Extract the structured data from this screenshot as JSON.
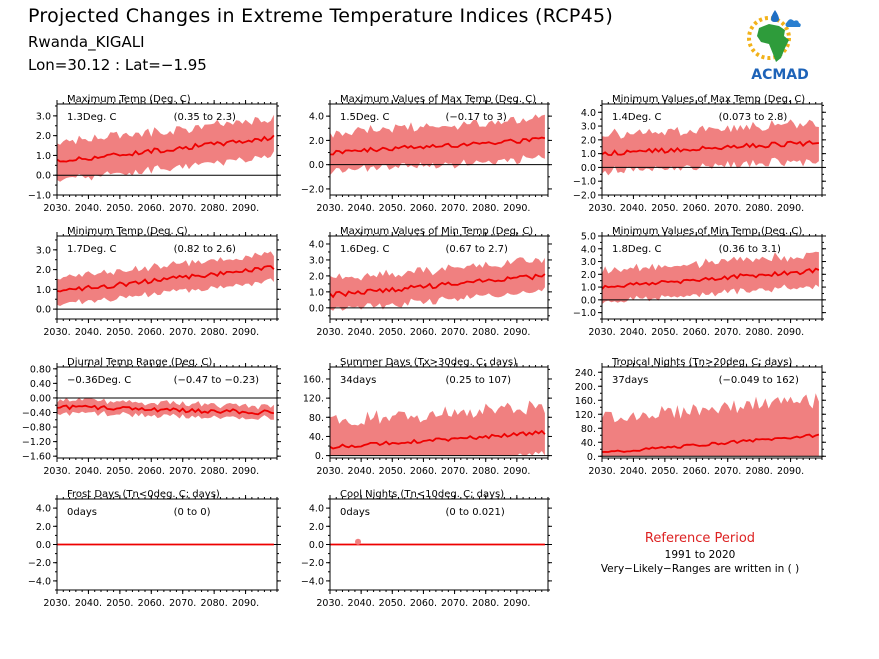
{
  "header": {
    "title": "Projected Changes in Extreme Temperature Indices (RCP45)",
    "location": "Rwanda_KIGALI",
    "coords": "Lon=30.12 : Lat=−1.95"
  },
  "logo": {
    "text": "ACMAD"
  },
  "reference": {
    "title": "Reference Period",
    "period": "1991 to 2020",
    "note": "Very−Likely−Ranges are written in ( )"
  },
  "colors": {
    "band": "#f08080",
    "line": "#ee0000",
    "zero": "#000000",
    "reference": "#dd2222"
  },
  "chart_data": [
    {
      "type": "line",
      "title": "Maximum Temp (Deg. C)",
      "annotation": "1.3Deg. C",
      "range": "(0.35 to 2.3)",
      "x_ticks": [
        "2030.",
        "2040.",
        "2050.",
        "2060.",
        "2070.",
        "2080.",
        "2090."
      ],
      "xlim": [
        2030,
        2100
      ],
      "ylim": [
        -1.0,
        3.6
      ],
      "y_ticks": [
        "−1.0",
        "0.0",
        "1.0",
        "2.0",
        "3.0"
      ],
      "y_tick_values": [
        -1,
        0,
        1,
        2,
        3
      ],
      "start": 0.7,
      "end": 1.9,
      "noise": 0.12,
      "band_half": 0.8,
      "band_noise": 0.25
    },
    {
      "type": "line",
      "title": "Maximum Values of Max Temp (Deg. C)",
      "annotation": "1.5Deg. C",
      "range": "(−0.17 to 3)",
      "x_ticks": [
        "2030.",
        "2040.",
        "2050.",
        "2060.",
        "2070.",
        "2080.",
        "2090."
      ],
      "xlim": [
        2030,
        2100
      ],
      "ylim": [
        -2.5,
        5.0
      ],
      "y_ticks": [
        "−2.0",
        "0.0",
        "2.0",
        "4.0"
      ],
      "y_tick_values": [
        -2,
        0,
        2,
        4
      ],
      "start": 1.0,
      "end": 2.1,
      "noise": 0.2,
      "band_half": 1.3,
      "band_noise": 0.5
    },
    {
      "type": "line",
      "title": "Minimum Values of Max Temp (Deg. C)",
      "annotation": "1.4Deg. C",
      "range": "(0.073 to 2.8)",
      "x_ticks": [
        "2030.",
        "2040.",
        "2050.",
        "2060.",
        "2070.",
        "2080.",
        "2090."
      ],
      "xlim": [
        2030,
        2100
      ],
      "ylim": [
        -2.0,
        4.6
      ],
      "y_ticks": [
        "−2.0",
        "−1.0",
        "0.0",
        "1.0",
        "2.0",
        "3.0",
        "4.0"
      ],
      "y_tick_values": [
        -2,
        -1,
        0,
        1,
        2,
        3,
        4
      ],
      "start": 1.0,
      "end": 1.8,
      "noise": 0.18,
      "band_half": 1.1,
      "band_noise": 0.4
    },
    {
      "type": "line",
      "title": "Minimum Temp (Deg. C)",
      "annotation": "1.7Deg. C",
      "range": "(0.82 to 2.6)",
      "x_ticks": [
        "2030.",
        "2040.",
        "2050.",
        "2060.",
        "2070.",
        "2080.",
        "2090."
      ],
      "xlim": [
        2030,
        2100
      ],
      "ylim": [
        -0.5,
        3.7
      ],
      "y_ticks": [
        "0.0",
        "1.0",
        "2.0",
        "3.0"
      ],
      "y_tick_values": [
        0,
        1,
        2,
        3
      ],
      "start": 0.9,
      "end": 2.1,
      "noise": 0.12,
      "band_half": 0.6,
      "band_noise": 0.15
    },
    {
      "type": "line",
      "title": "Maximum Values of Min Temp (Deg. C)",
      "annotation": "1.6Deg. C",
      "range": "(0.67 to 2.7)",
      "x_ticks": [
        "2030.",
        "2040.",
        "2050.",
        "2060.",
        "2070.",
        "2080.",
        "2090."
      ],
      "xlim": [
        2030,
        2100
      ],
      "ylim": [
        -0.7,
        4.5
      ],
      "y_ticks": [
        "0.0",
        "1.0",
        "2.0",
        "3.0",
        "4.0"
      ],
      "y_tick_values": [
        0,
        1,
        2,
        3,
        4
      ],
      "start": 0.8,
      "end": 2.0,
      "noise": 0.15,
      "band_half": 0.8,
      "band_noise": 0.3
    },
    {
      "type": "line",
      "title": "Minimum Values of Min Temp (Deg. C)",
      "annotation": "1.8Deg. C",
      "range": "(0.36 to 3.1)",
      "x_ticks": [
        "2030.",
        "2040.",
        "2050.",
        "2060.",
        "2070.",
        "2080.",
        "2090."
      ],
      "xlim": [
        2030,
        2100
      ],
      "ylim": [
        -1.5,
        5.0
      ],
      "y_ticks": [
        "−1.0",
        "0.0",
        "1.0",
        "2.0",
        "3.0",
        "4.0",
        "5.0"
      ],
      "y_tick_values": [
        -1,
        0,
        1,
        2,
        3,
        4,
        5
      ],
      "start": 1.0,
      "end": 2.3,
      "noise": 0.18,
      "band_half": 1.0,
      "band_noise": 0.4
    },
    {
      "type": "line",
      "title": "Diurnal Temp Range (Deg. C)",
      "annotation": "−0.36Deg. C",
      "range": "(−0.47 to −0.23)",
      "x_ticks": [
        "2030.",
        "2040.",
        "2050.",
        "2060.",
        "2070.",
        "2080.",
        "2090."
      ],
      "xlim": [
        2030,
        2100
      ],
      "ylim": [
        -1.65,
        0.85
      ],
      "y_ticks": [
        "−1.60",
        "−1.20",
        "−0.80",
        "−0.40",
        "0.00",
        "0.40",
        "0.80"
      ],
      "y_tick_values": [
        -1.6,
        -1.2,
        -0.8,
        -0.4,
        0,
        0.4,
        0.8
      ],
      "start": -0.25,
      "end": -0.4,
      "noise": 0.06,
      "band_half": 0.13,
      "band_noise": 0.08
    },
    {
      "type": "line",
      "title": "Summer Days (Tx>30deg. C; days)",
      "annotation": "34days",
      "range": "(0.25 to 107)",
      "x_ticks": [
        "2030.",
        "2040.",
        "2050.",
        "2060.",
        "2070.",
        "2080.",
        "2090."
      ],
      "xlim": [
        2030,
        2100
      ],
      "ylim": [
        -5,
        185
      ],
      "y_ticks": [
        "0.",
        "40.",
        "80.",
        "120.",
        "160."
      ],
      "y_tick_values": [
        0,
        40,
        80,
        120,
        160
      ],
      "start": 18,
      "end": 48,
      "noise": 4,
      "band_half": 40,
      "band_noise": 22,
      "clip0": true
    },
    {
      "type": "line",
      "title": "Tropical Nights (Tn>20deg. C; days)",
      "annotation": "37days",
      "range": "(−0.049 to 162)",
      "x_ticks": [
        "2030.",
        "2040.",
        "2050.",
        "2060.",
        "2070.",
        "2080.",
        "2090."
      ],
      "xlim": [
        2030,
        2100
      ],
      "ylim": [
        -5,
        255
      ],
      "y_ticks": [
        "0.",
        "40.",
        "80.",
        "120.",
        "160.",
        "200.",
        "240."
      ],
      "y_tick_values": [
        0,
        40,
        80,
        120,
        160,
        200,
        240
      ],
      "start": 10,
      "end": 60,
      "noise": 4,
      "band_half": 80,
      "band_noise": 30,
      "clip0": true
    },
    {
      "type": "line",
      "title": "Frost Days (Tn<0deg. C; days)",
      "annotation": "0days",
      "range": "(0 to 0)",
      "x_ticks": [
        "2030.",
        "2040.",
        "2050.",
        "2060.",
        "2070.",
        "2080.",
        "2090."
      ],
      "xlim": [
        2030,
        2100
      ],
      "ylim": [
        -5.0,
        5.0
      ],
      "y_ticks": [
        "−4.0",
        "−2.0",
        "0.0",
        "2.0",
        "4.0"
      ],
      "y_tick_values": [
        -4,
        -2,
        0,
        2,
        4
      ],
      "start": 0,
      "end": 0,
      "noise": 0,
      "band_half": 0,
      "band_noise": 0
    },
    {
      "type": "line",
      "title": "Cool Nights (Tn<10deg. C; days)",
      "annotation": "0days",
      "range": "(0 to 0.021)",
      "x_ticks": [
        "2030.",
        "2040.",
        "2050.",
        "2060.",
        "2070.",
        "2080.",
        "2090."
      ],
      "xlim": [
        2030,
        2100
      ],
      "ylim": [
        -5.0,
        5.0
      ],
      "y_ticks": [
        "−4.0",
        "−2.0",
        "0.0",
        "2.0",
        "4.0"
      ],
      "y_tick_values": [
        -4,
        -2,
        0,
        2,
        4
      ],
      "start": 0,
      "end": 0,
      "noise": 0,
      "band_half": 0,
      "band_noise": 0,
      "bump_x": 2039,
      "bump_y": 0.3
    }
  ]
}
